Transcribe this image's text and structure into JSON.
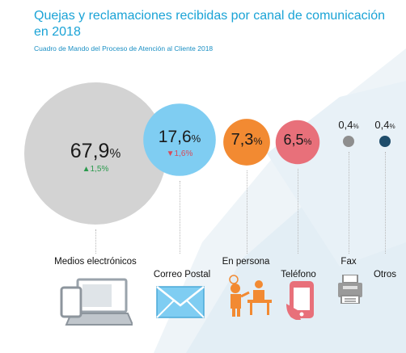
{
  "header": {
    "title": "Quejas y reclamaciones recibidas por canal de comunicación en 2018",
    "subtitle": "Cuadro de Mando del Proceso de Atención al Cliente 2018"
  },
  "chart_data": {
    "type": "bubble",
    "unit": "%",
    "categories": [
      "Medios electrónicos",
      "Correo Postal",
      "En persona",
      "Teléfono",
      "Fax",
      "Otros"
    ],
    "values": [
      67.9,
      17.6,
      7.3,
      6.5,
      0.4,
      0.4
    ],
    "value_labels": [
      "67,9",
      "17,6",
      "7,3",
      "6,5",
      "0,4",
      "0,4"
    ],
    "changes": [
      {
        "direction": "up",
        "text": "1,5%"
      },
      {
        "direction": "down",
        "text": "1,6%"
      },
      null,
      null,
      null,
      null
    ],
    "colors": [
      "#d3d3d3",
      "#7fcdf2",
      "#f28a32",
      "#e8707a",
      "#8e8e8e",
      "#1f4d6b"
    ],
    "change_colors": {
      "up": "#2a9a4c",
      "down": "#d84a5a"
    }
  },
  "icons": [
    "devices-icon",
    "envelope-icon",
    "person-at-desk-icon",
    "mobile-phone-icon",
    "fax-machine-icon"
  ]
}
